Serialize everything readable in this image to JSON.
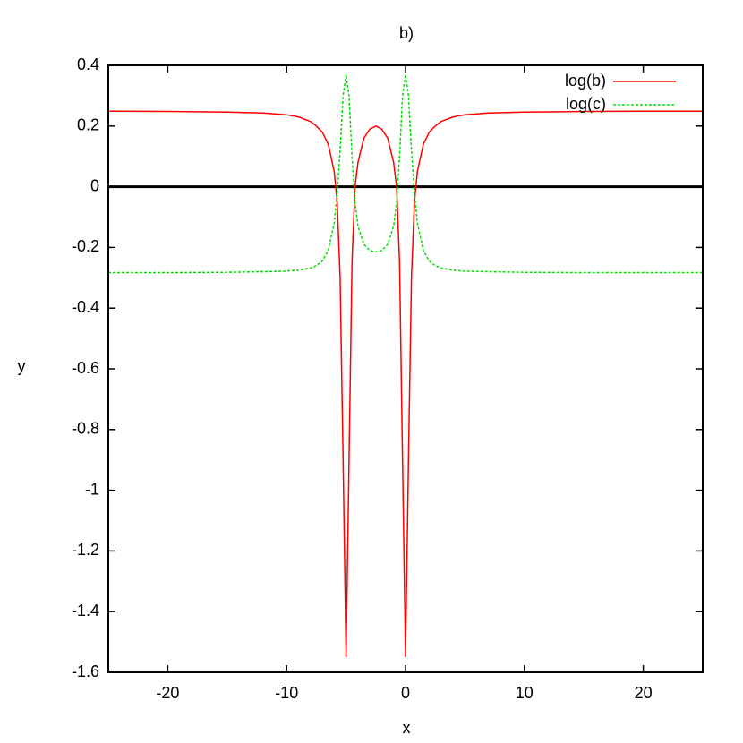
{
  "chart_data": {
    "type": "line",
    "title": "b)",
    "x_label": "x",
    "y_label": "y",
    "x": [
      -25,
      -20,
      -15,
      -12,
      -10,
      -9,
      -8,
      -7.5,
      -7,
      -6.5,
      -6,
      -5.75,
      -5.5,
      -5.25,
      -5,
      -4.75,
      -4.5,
      -4.25,
      -4,
      -3.5,
      -3,
      -2.5,
      -2,
      -1.5,
      -1,
      -0.75,
      -0.5,
      -0.25,
      0,
      0.25,
      0.5,
      0.75,
      1,
      1.5,
      2,
      2.5,
      3,
      4,
      5,
      7,
      10,
      15,
      20,
      25
    ],
    "series": [
      {
        "name": "log(b)",
        "color": "#ff0000",
        "dash": false,
        "values": [
          0.249,
          0.248,
          0.246,
          0.243,
          0.237,
          0.23,
          0.215,
          0.2,
          0.18,
          0.14,
          0.05,
          -0.05,
          -0.3,
          -0.9,
          -1.55,
          -0.9,
          -0.25,
          0.0,
          0.08,
          0.16,
          0.19,
          0.2,
          0.19,
          0.16,
          0.08,
          0.0,
          -0.25,
          -0.9,
          -1.55,
          -0.9,
          -0.3,
          -0.05,
          0.05,
          0.14,
          0.18,
          0.2,
          0.215,
          0.23,
          0.237,
          0.243,
          0.246,
          0.248,
          0.249,
          0.249
        ]
      },
      {
        "name": "log(c)",
        "color": "#00e000",
        "dash": true,
        "values": [
          -0.283,
          -0.283,
          -0.282,
          -0.28,
          -0.278,
          -0.275,
          -0.268,
          -0.26,
          -0.245,
          -0.21,
          -0.12,
          -0.02,
          0.12,
          0.3,
          0.37,
          0.3,
          0.1,
          -0.05,
          -0.13,
          -0.19,
          -0.21,
          -0.215,
          -0.21,
          -0.19,
          -0.13,
          -0.05,
          0.1,
          0.3,
          0.37,
          0.3,
          0.12,
          -0.02,
          -0.12,
          -0.21,
          -0.245,
          -0.26,
          -0.268,
          -0.275,
          -0.278,
          -0.28,
          -0.282,
          -0.283,
          -0.283,
          -0.283
        ]
      }
    ],
    "xlim": [
      -25,
      25
    ],
    "xticks": [
      -20,
      -10,
      0,
      10,
      20
    ],
    "ylim": [
      -1.6,
      0.4
    ],
    "yticks": [
      0.4,
      0.2,
      0,
      -0.2,
      -0.4,
      -0.6,
      -0.8,
      -1,
      -1.2,
      -1.4,
      -1.6
    ],
    "zeroaxis": true,
    "legend": "top right"
  }
}
